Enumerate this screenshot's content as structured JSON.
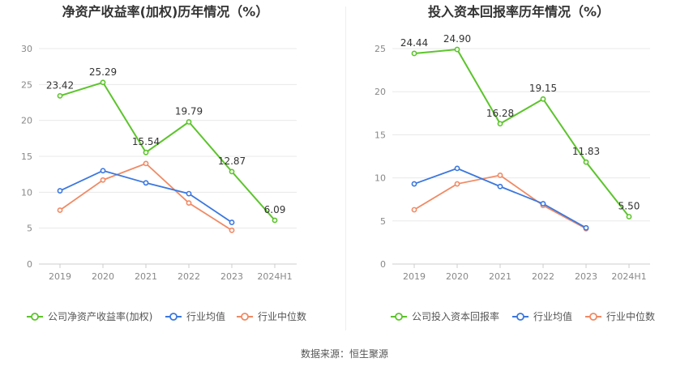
{
  "source_text": "数据来源：恒生聚源",
  "colors": {
    "company": "#5cc42b",
    "industry_avg": "#3b78de",
    "industry_median": "#f08a64",
    "grid": "#e8e8e8",
    "axis": "#cccccc",
    "tick_text": "#888888",
    "label_text": "#333333"
  },
  "chart_data": [
    {
      "type": "line",
      "title": "净资产收益率(加权)历年情况（%）",
      "categories": [
        "2019",
        "2020",
        "2021",
        "2022",
        "2023",
        "2024H1"
      ],
      "ylim": [
        0,
        30
      ],
      "yticks": [
        0,
        5,
        10,
        15,
        20,
        25,
        30
      ],
      "grid": true,
      "legend_position": "bottom",
      "series": [
        {
          "name": "公司净资产收益率(加权)",
          "key": "company",
          "values": [
            23.42,
            25.29,
            15.54,
            19.79,
            12.87,
            6.09
          ],
          "labels": [
            "23.42",
            "25.29",
            "15.54",
            "19.79",
            "12.87",
            "6.09"
          ]
        },
        {
          "name": "行业均值",
          "key": "industry_avg",
          "values": [
            10.2,
            13.0,
            11.3,
            9.8,
            5.8,
            null
          ]
        },
        {
          "name": "行业中位数",
          "key": "industry_median",
          "values": [
            7.5,
            11.7,
            14.0,
            8.5,
            4.7,
            null
          ]
        }
      ]
    },
    {
      "type": "line",
      "title": "投入资本回报率历年情况（%）",
      "categories": [
        "2019",
        "2020",
        "2021",
        "2022",
        "2023",
        "2024H1"
      ],
      "ylim": [
        0,
        25
      ],
      "yticks": [
        0,
        5,
        10,
        15,
        20,
        25
      ],
      "grid": true,
      "legend_position": "bottom",
      "series": [
        {
          "name": "公司投入资本回报率",
          "key": "company",
          "values": [
            24.44,
            24.9,
            16.28,
            19.15,
            11.83,
            5.5
          ],
          "labels": [
            "24.44",
            "24.90",
            "16.28",
            "19.15",
            "11.83",
            "5.50"
          ]
        },
        {
          "name": "行业均值",
          "key": "industry_avg",
          "values": [
            9.3,
            11.1,
            9.0,
            7.0,
            4.2,
            null
          ]
        },
        {
          "name": "行业中位数",
          "key": "industry_median",
          "values": [
            6.3,
            9.3,
            10.3,
            6.8,
            4.1,
            null
          ]
        }
      ]
    }
  ]
}
